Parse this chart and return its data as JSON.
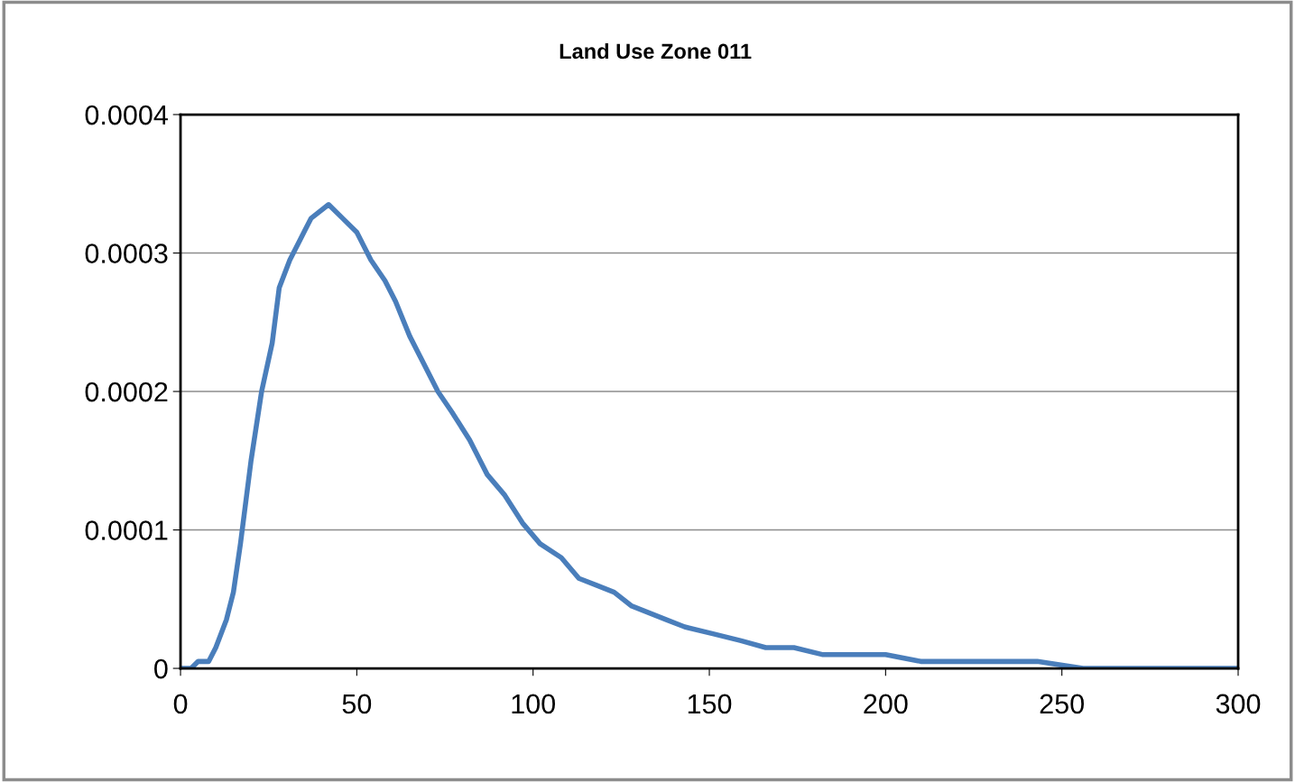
{
  "chart_data": {
    "type": "line",
    "title": "Land Use Zone 011",
    "x": [
      0,
      3,
      5,
      8,
      10,
      13,
      15,
      17,
      20,
      23,
      26,
      28,
      31,
      34,
      37,
      42,
      46,
      50,
      54,
      58,
      61,
      65,
      69,
      73,
      77,
      82,
      87,
      92,
      97,
      102,
      108,
      113,
      118,
      123,
      128,
      133,
      138,
      143,
      151,
      159,
      166,
      174,
      182,
      189,
      200,
      210,
      220,
      230,
      243,
      256,
      269,
      282,
      300
    ],
    "series": [
      {
        "color": "#4a7ebb",
        "values": [
          0,
          0,
          5e-06,
          5e-06,
          1.5e-05,
          3.5e-05,
          5.5e-05,
          9e-05,
          0.00015,
          0.0002,
          0.000235,
          0.000275,
          0.000295,
          0.00031,
          0.000325,
          0.000335,
          0.000325,
          0.000315,
          0.000295,
          0.00028,
          0.000265,
          0.00024,
          0.00022,
          0.0002,
          0.000185,
          0.000165,
          0.00014,
          0.000125,
          0.000105,
          9e-05,
          8e-05,
          6.5e-05,
          6e-05,
          5.5e-05,
          4.5e-05,
          4e-05,
          3.5e-05,
          3e-05,
          2.5e-05,
          2e-05,
          1.5e-05,
          1.5e-05,
          1e-05,
          1e-05,
          1e-05,
          5e-06,
          5e-06,
          5e-06,
          5e-06,
          0,
          0,
          0,
          0
        ]
      }
    ],
    "xlim": [
      0,
      300
    ],
    "xticks": [
      0,
      50,
      100,
      150,
      200,
      250,
      300
    ],
    "ylim": [
      0,
      0.0004
    ],
    "yticks": [
      {
        "value": 0,
        "label": "0"
      },
      {
        "value": 0.0001,
        "label": "0.0001"
      },
      {
        "value": 0.0002,
        "label": "0.0002"
      },
      {
        "value": 0.0003,
        "label": "0.0003"
      },
      {
        "value": 0.0004,
        "label": "0.0004"
      }
    ],
    "grid": "y",
    "marker": "none",
    "line_style": "solid"
  }
}
